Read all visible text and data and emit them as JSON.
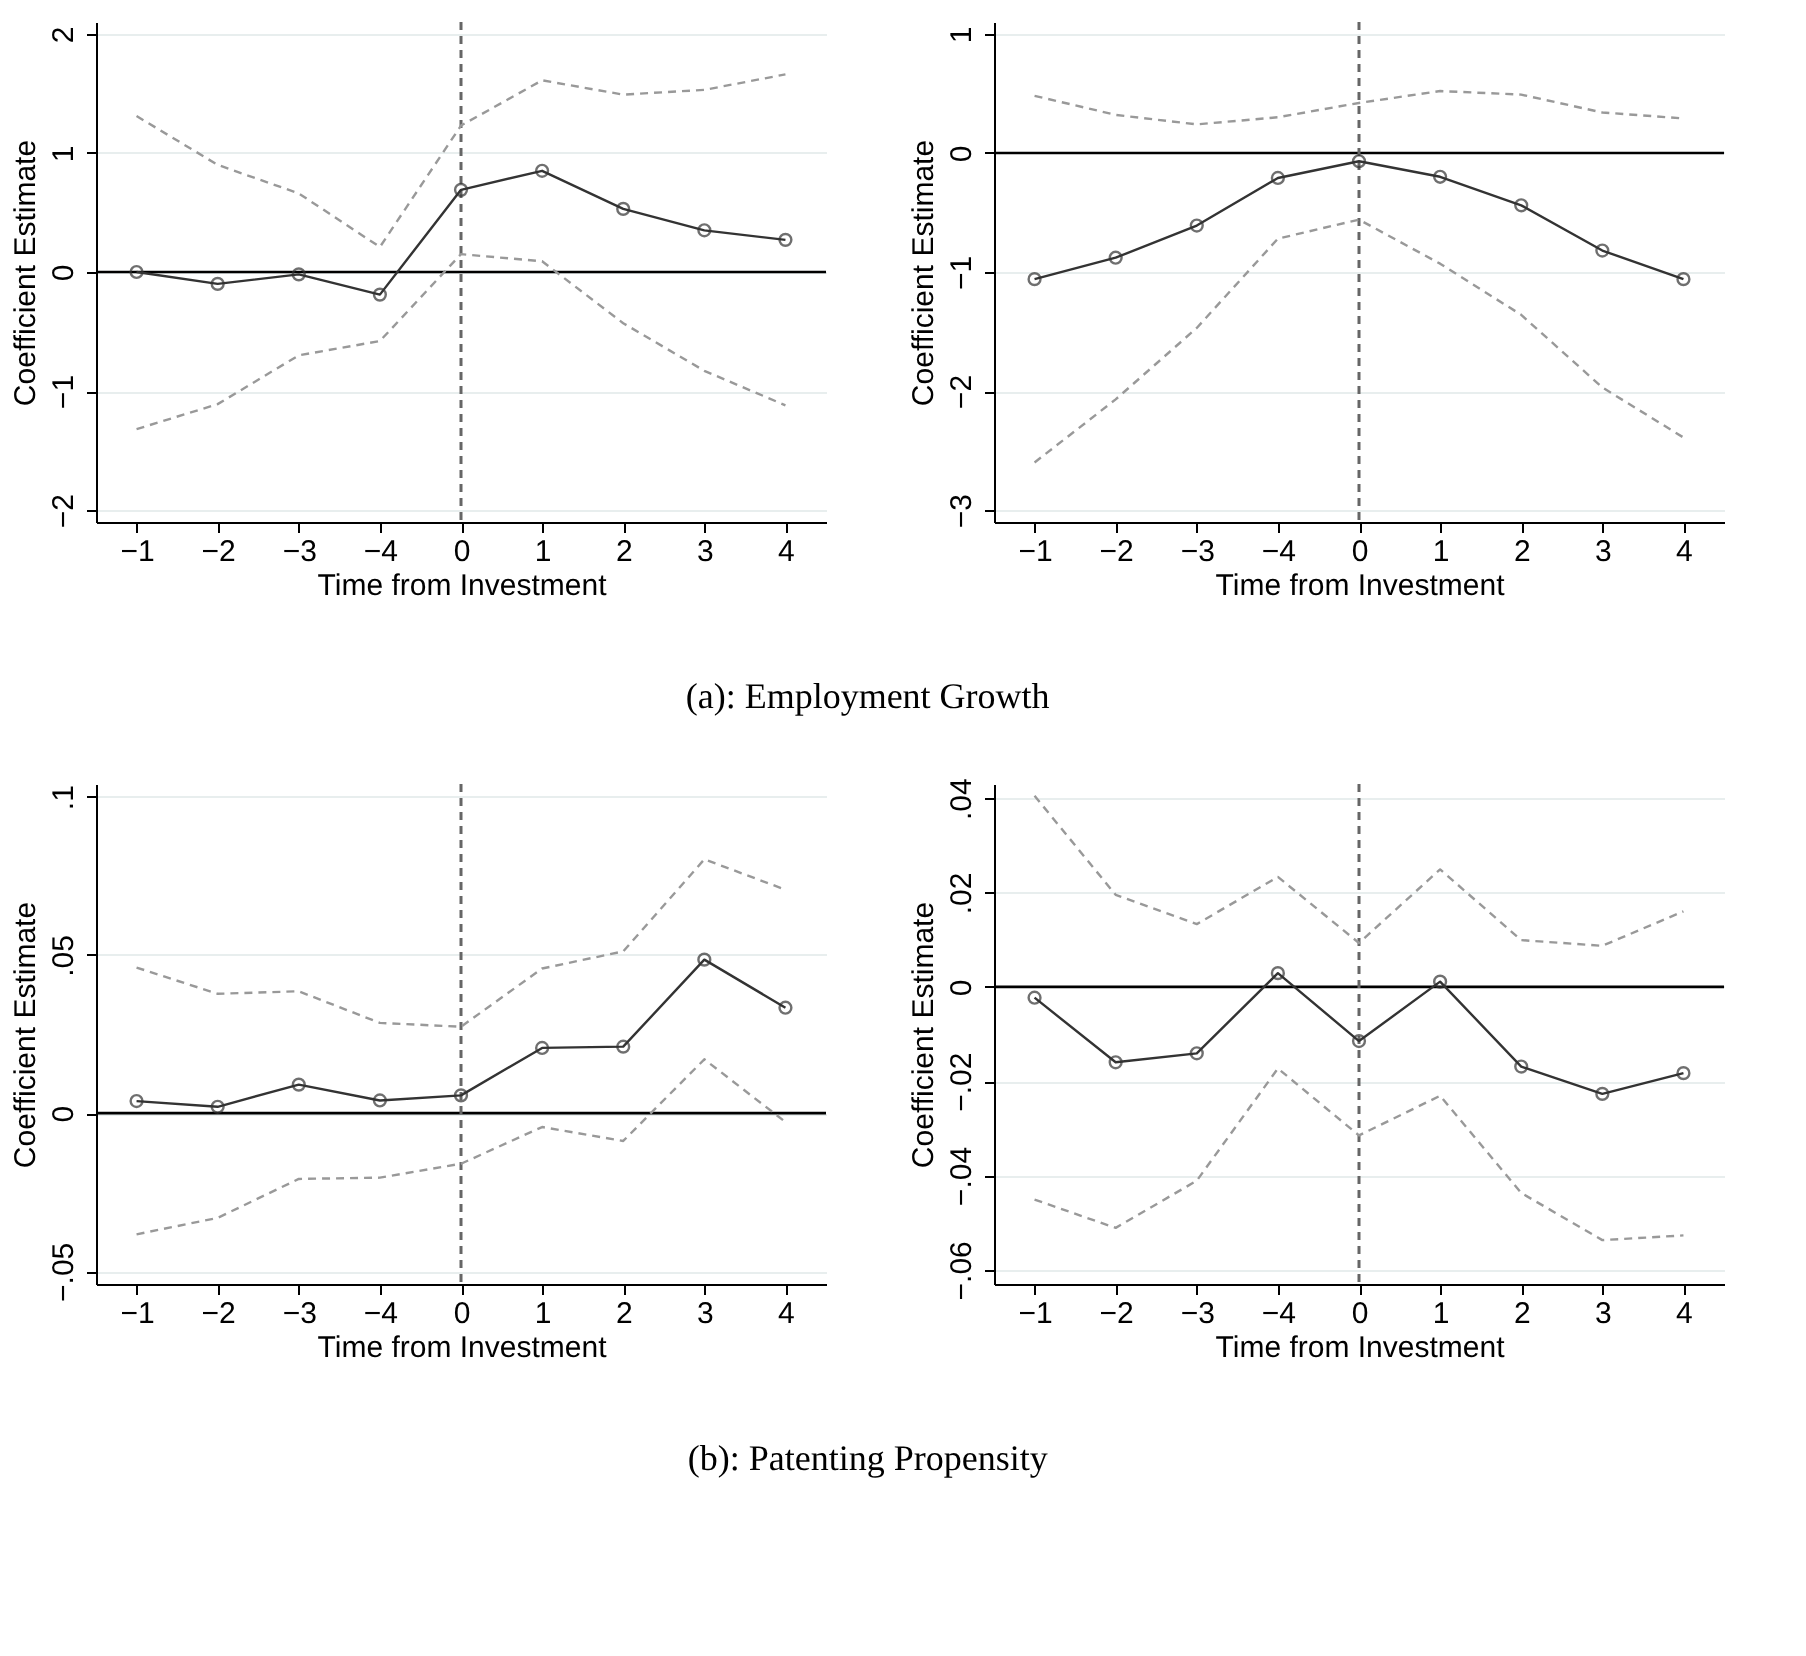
{
  "chart_data": [
    {
      "type": "line",
      "xlabel": "Time from Investment",
      "ylabel": "Coefficient Estimate",
      "categories": [
        "−1",
        "−2",
        "−3",
        "−4",
        "0",
        "1",
        "2",
        "3",
        "4"
      ],
      "ylim": [
        -2.1,
        2.1
      ],
      "yticks": [
        {
          "value": -2,
          "label": "−2"
        },
        {
          "value": -1,
          "label": "−1"
        },
        0,
        1,
        2
      ],
      "grid": "y",
      "series": [
        {
          "color": "#333333",
          "marker": "circle",
          "line_style": "solid",
          "values": [
            0,
            -0.1,
            -0.02,
            -0.19,
            0.69,
            0.85,
            0.53,
            0.35,
            0.27
          ]
        },
        {
          "color": "#999999",
          "marker": "none",
          "line_style": "dashed",
          "values": [
            1.31,
            0.9,
            0.66,
            0.21,
            1.23,
            1.61,
            1.49,
            1.53,
            1.66
          ]
        },
        {
          "color": "#999999",
          "marker": "none",
          "line_style": "dashed",
          "values": [
            -1.32,
            -1.11,
            -0.7,
            -0.58,
            0.15,
            0.09,
            -0.43,
            -0.83,
            -1.12
          ]
        }
      ],
      "ref_lines": [
        {
          "axis": "y",
          "value": 0,
          "color": "#000000",
          "line_style": "solid"
        },
        {
          "axis": "x",
          "value": "0",
          "color": "#666666",
          "line_style": "dashed"
        }
      ],
      "annotations": [
        "(a): Employment Growth"
      ]
    },
    {
      "type": "line",
      "xlabel": "Time from Investment",
      "ylabel": "Coefficient Estimate",
      "categories": [
        "−1",
        "−2",
        "−3",
        "−4",
        "0",
        "1",
        "2",
        "3",
        "4"
      ],
      "ylim": [
        -3.1,
        1.1
      ],
      "yticks": [
        {
          "value": -3,
          "label": "−3"
        },
        {
          "value": -2,
          "label": "−2"
        },
        {
          "value": -1,
          "label": "−1"
        },
        0,
        1
      ],
      "grid": "y",
      "series": [
        {
          "color": "#333333",
          "marker": "circle",
          "line_style": "solid",
          "values": [
            -1.06,
            -0.88,
            -0.61,
            -0.21,
            -0.07,
            -0.2,
            -0.44,
            -0.82,
            -1.06
          ]
        },
        {
          "color": "#999999",
          "marker": "none",
          "line_style": "dashed",
          "values": [
            0.48,
            0.32,
            0.24,
            0.3,
            0.42,
            0.52,
            0.49,
            0.34,
            0.29
          ]
        },
        {
          "color": "#999999",
          "marker": "none",
          "line_style": "dashed",
          "values": [
            -2.6,
            -2.07,
            -1.47,
            -0.72,
            -0.56,
            -0.93,
            -1.36,
            -1.97,
            -2.39
          ]
        }
      ],
      "ref_lines": [
        {
          "axis": "y",
          "value": 0,
          "color": "#000000",
          "line_style": "solid"
        },
        {
          "axis": "x",
          "value": "0",
          "color": "#666666",
          "line_style": "dashed"
        }
      ]
    },
    {
      "type": "line",
      "xlabel": "Time from Investment",
      "ylabel": "Coefficient Estimate",
      "categories": [
        "−1",
        "−2",
        "−3",
        "−4",
        "0",
        "1",
        "2",
        "3",
        "4"
      ],
      "ylim": [
        -0.054,
        0.104
      ],
      "yticks": [
        {
          "value": -0.05,
          "label": "−.05"
        },
        0,
        {
          "value": 0.05,
          "label": ".05"
        },
        {
          "value": 0.1,
          "label": ".1"
        }
      ],
      "grid": "y",
      "series": [
        {
          "color": "#333333",
          "marker": "circle",
          "line_style": "solid",
          "values": [
            0.0038,
            0.002,
            0.009,
            0.004,
            0.0056,
            0.0206,
            0.021,
            0.0485,
            0.0333
          ]
        },
        {
          "color": "#999999",
          "marker": "none",
          "line_style": "dashed",
          "values": [
            0.046,
            0.0377,
            0.0385,
            0.0285,
            0.0273,
            0.0457,
            0.0511,
            0.0802,
            0.0706
          ]
        },
        {
          "color": "#999999",
          "marker": "none",
          "line_style": "dashed",
          "values": [
            -0.0383,
            -0.0331,
            -0.0208,
            -0.0204,
            -0.016,
            -0.0044,
            -0.0088,
            0.017,
            -0.0028
          ]
        }
      ],
      "ref_lines": [
        {
          "axis": "y",
          "value": 0,
          "color": "#000000",
          "line_style": "solid"
        },
        {
          "axis": "x",
          "value": "0",
          "color": "#666666",
          "line_style": "dashed"
        }
      ],
      "annotations": [
        "(b): Patenting Propensity"
      ]
    },
    {
      "type": "line",
      "xlabel": "Time from Investment",
      "ylabel": "Coefficient Estimate",
      "categories": [
        "−1",
        "−2",
        "−3",
        "−4",
        "0",
        "1",
        "2",
        "3",
        "4"
      ],
      "ylim": [
        -0.063,
        0.043
      ],
      "yticks": [
        {
          "value": -0.06,
          "label": "−.06"
        },
        {
          "value": -0.04,
          "label": "−.04"
        },
        {
          "value": -0.02,
          "label": "−.02"
        },
        0,
        {
          "value": 0.02,
          "label": ".02"
        },
        {
          "value": 0.04,
          "label": ".04"
        }
      ],
      "grid": "y",
      "series": [
        {
          "color": "#333333",
          "marker": "circle",
          "line_style": "solid",
          "values": [
            -0.0023,
            -0.016,
            -0.0141,
            0.0029,
            -0.0115,
            0.0011,
            -0.0169,
            -0.0227,
            -0.0183
          ]
        },
        {
          "color": "#999999",
          "marker": "none",
          "line_style": "dashed",
          "values": [
            0.0405,
            0.0195,
            0.0133,
            0.0233,
            0.0093,
            0.0249,
            0.0099,
            0.0087,
            0.016
          ]
        },
        {
          "color": "#999999",
          "marker": "none",
          "line_style": "dashed",
          "values": [
            -0.0451,
            -0.0511,
            -0.0411,
            -0.0173,
            -0.0315,
            -0.0231,
            -0.0437,
            -0.0537,
            -0.0527
          ]
        }
      ],
      "ref_lines": [
        {
          "axis": "y",
          "value": 0,
          "color": "#000000",
          "line_style": "solid"
        },
        {
          "axis": "x",
          "value": "0",
          "color": "#666666",
          "line_style": "dashed"
        }
      ]
    }
  ]
}
